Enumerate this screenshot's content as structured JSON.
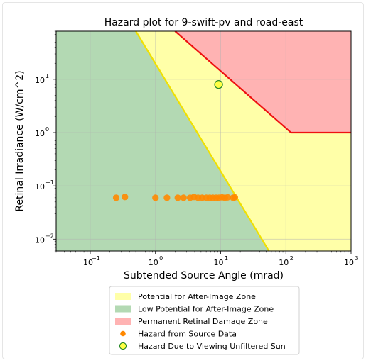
{
  "chart_data": {
    "type": "scatter",
    "title": "Hazard plot for 9-swift-pv and road-east",
    "xlabel": "Subtended Source Angle (mrad)",
    "ylabel": "Retinal Irradiance (W/cm^2)",
    "xscale": "log",
    "yscale": "log",
    "xlim": [
      0.03,
      1000
    ],
    "ylim": [
      0.006,
      80
    ],
    "xticks": [
      {
        "value": 0.1,
        "base": "10",
        "exp": "−1"
      },
      {
        "value": 1,
        "base": "10",
        "exp": "0"
      },
      {
        "value": 10,
        "base": "10",
        "exp": "1"
      },
      {
        "value": 100,
        "base": "10",
        "exp": "2"
      },
      {
        "value": 1000,
        "base": "10",
        "exp": "3"
      }
    ],
    "yticks": [
      {
        "value": 0.01,
        "base": "10",
        "exp": "−2"
      },
      {
        "value": 0.1,
        "base": "10",
        "exp": "−1"
      },
      {
        "value": 1,
        "base": "10",
        "exp": "0"
      },
      {
        "value": 10,
        "base": "10",
        "exp": "1"
      }
    ],
    "grid": true,
    "legend_position": "below",
    "zones": [
      {
        "name": "Potential for After-Image Zone",
        "color": "#ffffa8",
        "boundary_color": "#f0e000"
      },
      {
        "name": "Low Potential for After-Image Zone",
        "color": "#b3d9b3"
      },
      {
        "name": "Permanent Retinal Damage Zone",
        "color": "#ffb3b3",
        "boundary_color": "#ee1111"
      }
    ],
    "after_image_boundary": [
      [
        0.5,
        80
      ],
      [
        55,
        0.006
      ]
    ],
    "damage_boundary": [
      [
        2,
        80
      ],
      [
        120,
        1.0
      ],
      [
        1000,
        1.0
      ]
    ],
    "series": [
      {
        "name": "Hazard from Source Data",
        "color": "#ff8800",
        "points": [
          [
            0.25,
            0.06
          ],
          [
            0.34,
            0.062
          ],
          [
            1.0,
            0.06
          ],
          [
            1.5,
            0.06
          ],
          [
            2.2,
            0.06
          ],
          [
            2.7,
            0.06
          ],
          [
            3.4,
            0.06
          ],
          [
            3.9,
            0.062
          ],
          [
            4.5,
            0.06
          ],
          [
            5.2,
            0.06
          ],
          [
            6.0,
            0.06
          ],
          [
            6.8,
            0.06
          ],
          [
            7.6,
            0.06
          ],
          [
            8.5,
            0.06
          ],
          [
            9.4,
            0.06
          ],
          [
            10.5,
            0.061
          ],
          [
            11.6,
            0.06
          ],
          [
            12.8,
            0.061
          ],
          [
            15.5,
            0.06
          ],
          [
            16.5,
            0.061
          ]
        ]
      },
      {
        "name": "Hazard Due to Viewing Unfiltered Sun",
        "color": "#ffff44",
        "edge_color": "#2a8a2a",
        "points": [
          [
            9.3,
            8.0
          ]
        ]
      }
    ]
  }
}
